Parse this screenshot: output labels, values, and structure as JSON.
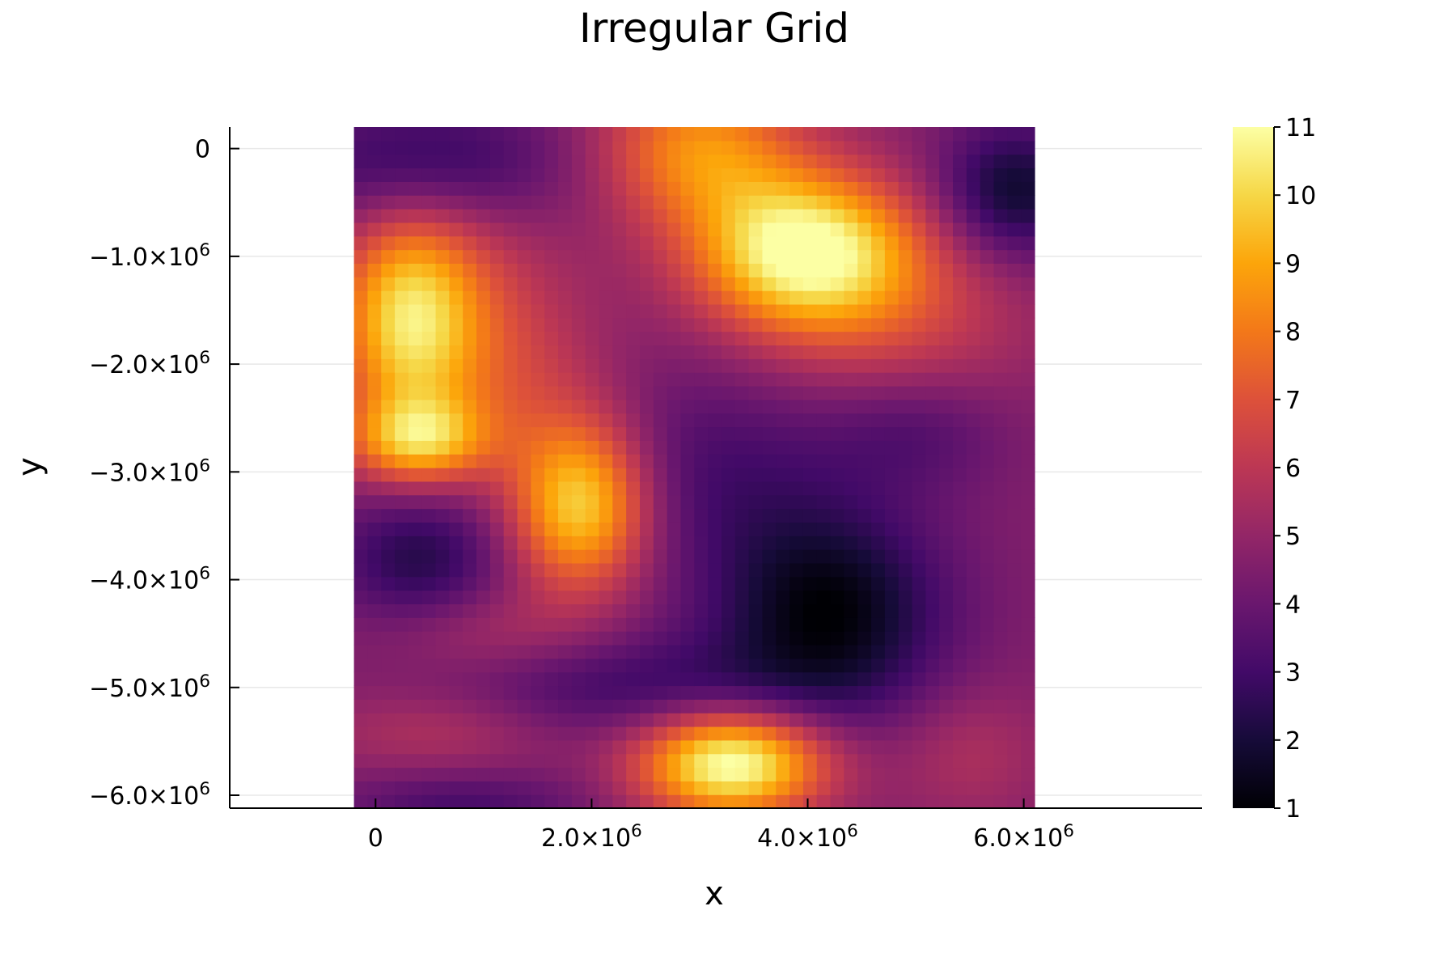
{
  "chart_data": {
    "type": "heatmap",
    "title": "Irregular Grid",
    "xlabel": "x",
    "ylabel": "y",
    "xlim": [
      -1350000,
      7650000
    ],
    "ylim": [
      -6120000,
      200000
    ],
    "x_ticks": [
      {
        "value": 0,
        "label": "0"
      },
      {
        "value": 2000000,
        "label": "2.0×10",
        "exp": "6"
      },
      {
        "value": 4000000,
        "label": "4.0×10",
        "exp": "6"
      },
      {
        "value": 6000000,
        "label": "6.0×10",
        "exp": "6"
      }
    ],
    "y_ticks": [
      {
        "value": 0,
        "label": "0"
      },
      {
        "value": -1000000,
        "label": "−1.0×10",
        "exp": "6"
      },
      {
        "value": -2000000,
        "label": "−2.0×10",
        "exp": "6"
      },
      {
        "value": -3000000,
        "label": "−3.0×10",
        "exp": "6"
      },
      {
        "value": -4000000,
        "label": "−4.0×10",
        "exp": "6"
      },
      {
        "value": -5000000,
        "label": "−5.0×10",
        "exp": "6"
      },
      {
        "value": -6000000,
        "label": "−6.0×10",
        "exp": "6"
      }
    ],
    "x_extent": [
      -200000,
      6100000
    ],
    "y_extent": [
      -6120000,
      200000
    ],
    "colorbar": {
      "colormap": "inferno",
      "range": [
        1,
        11
      ],
      "ticks": [
        1,
        2,
        3,
        4,
        5,
        6,
        7,
        8,
        9,
        10,
        11
      ]
    },
    "grid": true,
    "approx_grid_shape": [
      50,
      50
    ],
    "z_model": {
      "base": 4.6,
      "features": [
        {
          "cx": 3000000,
          "cy": 0,
          "sx": 650000,
          "sy": 500000,
          "amp": 3.8
        },
        {
          "cx": 3950000,
          "cy": -950000,
          "sx": 700000,
          "sy": 500000,
          "amp": 6.2
        },
        {
          "cx": 300000,
          "cy": -1600000,
          "sx": 450000,
          "sy": 700000,
          "amp": 4.8
        },
        {
          "cx": 400000,
          "cy": -2700000,
          "sx": 450000,
          "sy": 280000,
          "amp": 4.2
        },
        {
          "cx": 1900000,
          "cy": -3300000,
          "sx": 450000,
          "sy": 550000,
          "amp": 5.6
        },
        {
          "cx": 3300000,
          "cy": -5700000,
          "sx": 600000,
          "sy": 350000,
          "amp": 6.8
        },
        {
          "cx": 800000,
          "cy": -1300000,
          "sx": 700000,
          "sy": 900000,
          "amp": 1.5
        },
        {
          "cx": 4800000,
          "cy": -1500000,
          "sx": 900000,
          "sy": 700000,
          "amp": 1.8
        },
        {
          "cx": 1300000,
          "cy": -2200000,
          "sx": 600000,
          "sy": 600000,
          "amp": 1.2
        },
        {
          "cx": 500000,
          "cy": -150000,
          "sx": 900000,
          "sy": 450000,
          "amp": -2.5
        },
        {
          "cx": 5900000,
          "cy": -400000,
          "sx": 500000,
          "sy": 450000,
          "amp": -3.0
        },
        {
          "cx": 400000,
          "cy": -3800000,
          "sx": 550000,
          "sy": 450000,
          "amp": -2.3
        },
        {
          "cx": 4200000,
          "cy": -4300000,
          "sx": 750000,
          "sy": 650000,
          "amp": -3.4
        },
        {
          "cx": 3200000,
          "cy": -3000000,
          "sx": 1000000,
          "sy": 700000,
          "amp": -1.5
        },
        {
          "cx": 2400000,
          "cy": -5000000,
          "sx": 1300000,
          "sy": 350000,
          "amp": -1.7
        },
        {
          "cx": 5000000,
          "cy": -2600000,
          "sx": 600000,
          "sy": 400000,
          "amp": -1.3
        },
        {
          "cx": 5500000,
          "cy": -5600000,
          "sx": 500000,
          "sy": 450000,
          "amp": 1.0
        },
        {
          "cx": 800000,
          "cy": -6100000,
          "sx": 800000,
          "sy": 250000,
          "amp": -1.5
        },
        {
          "cx": 600000,
          "cy": -5400000,
          "sx": 800000,
          "sy": 300000,
          "amp": 1.2
        },
        {
          "cx": 1000000,
          "cy": -4500000,
          "sx": 700000,
          "sy": 300000,
          "amp": 1.1
        }
      ]
    }
  }
}
